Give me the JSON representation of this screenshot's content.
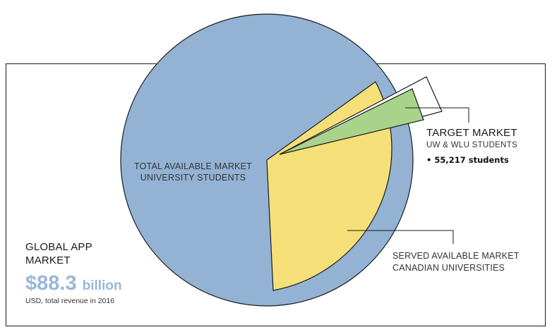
{
  "colors": {
    "total": "#93b2d4",
    "served": "#f5df78",
    "target": "#a9d38b",
    "value": "#9ab6d8",
    "stroke": "#1a1a1a"
  },
  "global_market": {
    "title_line1": "GLOBAL APP",
    "title_line2": "MARKET",
    "value": "$88.3",
    "unit": "billion",
    "note": "USD, total revenue in 2016"
  },
  "total_available": {
    "line1": "TOTAL AVAILABLE MARKET",
    "line2": "UNIVERSITY STUDENTS"
  },
  "target_market": {
    "title": "TARGET MARKET",
    "subtitle": "UW & WLU STUDENTS",
    "bullet": "55,217 students"
  },
  "served_available": {
    "line1": "SERVED AVAILABLE MARKET",
    "line2": "CANADIAN UNIVERSITIES"
  }
}
